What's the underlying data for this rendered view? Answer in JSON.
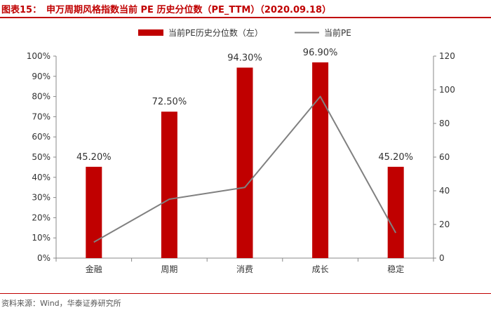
{
  "header": {
    "figure_label": "图表15：",
    "title": "申万周期风格指数当前 PE 历史分位数（PE_TTM）（2020.09.18）"
  },
  "footer": {
    "source": "资料来源：Wind，华泰证券研究所"
  },
  "colors": {
    "bar": "#c00000",
    "line": "#808080",
    "accent": "#c00000"
  },
  "chart_data": {
    "type": "bar",
    "categories": [
      "金融",
      "周期",
      "消费",
      "成长",
      "稳定"
    ],
    "series": [
      {
        "name": "当前PE历史分位数（左）",
        "type": "bar",
        "axis": "left",
        "values": [
          45.2,
          72.5,
          94.3,
          96.9,
          45.2
        ],
        "data_labels": [
          "45.20%",
          "72.50%",
          "94.30%",
          "96.90%",
          "45.20%"
        ]
      },
      {
        "name": "当前PE",
        "type": "line",
        "axis": "right",
        "values": [
          9.5,
          35,
          42,
          96,
          15
        ]
      }
    ],
    "y_left": {
      "min": 0,
      "max": 100,
      "ticks": [
        "0%",
        "10%",
        "20%",
        "30%",
        "40%",
        "50%",
        "60%",
        "70%",
        "80%",
        "90%",
        "100%"
      ]
    },
    "y_right": {
      "min": 0,
      "max": 120,
      "ticks": [
        "0",
        "20",
        "40",
        "60",
        "80",
        "100",
        "120"
      ]
    },
    "grid": false,
    "legend_position": "top-center"
  }
}
